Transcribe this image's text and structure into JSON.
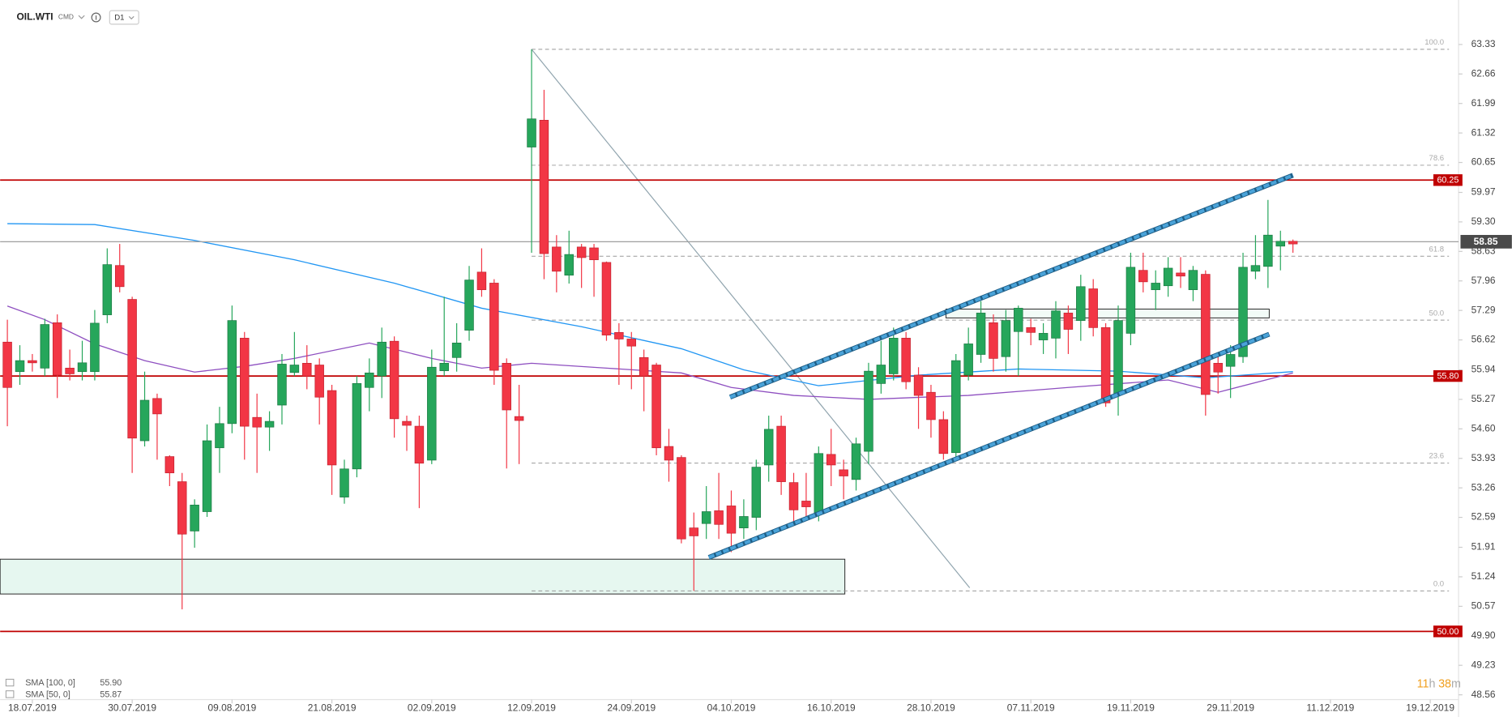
{
  "header": {
    "symbol": "OIL.WTI",
    "market": "CMD",
    "interval": "D1"
  },
  "timer": [
    "11",
    "h",
    "38",
    "m"
  ],
  "chart_data": {
    "type": "candlestick",
    "x": [
      0,
      1,
      2,
      3,
      4,
      5,
      6,
      7,
      8,
      9,
      10,
      11,
      12,
      13,
      14,
      15,
      16,
      17,
      18,
      19,
      20,
      21,
      22,
      23,
      24,
      25,
      26,
      27,
      28,
      29,
      30,
      31,
      32,
      33,
      34,
      35,
      36,
      37,
      38,
      39,
      40,
      41,
      42,
      43,
      44,
      45,
      46,
      47,
      48,
      49,
      50,
      51,
      52,
      53,
      54,
      55,
      56,
      57,
      58,
      59,
      60,
      61,
      62,
      63,
      64,
      65,
      66,
      67,
      68,
      69,
      70,
      71,
      72,
      73,
      74,
      75,
      76,
      77,
      78,
      79,
      80,
      81,
      82,
      83,
      84,
      85,
      86,
      87,
      88,
      89,
      90,
      91,
      92,
      93,
      94,
      95,
      96,
      97,
      98,
      99,
      100,
      101,
      102,
      103
    ],
    "open": [
      56.57,
      55.9,
      56.15,
      55.98,
      57.01,
      55.98,
      55.9,
      55.9,
      57.19,
      58.31,
      57.54,
      54.33,
      55.29,
      53.97,
      53.4,
      52.28,
      52.72,
      54.17,
      54.72,
      56.66,
      54.86,
      54.64,
      55.14,
      55.88,
      56.09,
      56.05,
      55.47,
      53.05,
      53.69,
      55.54,
      55.8,
      56.59,
      54.77,
      54.66,
      53.89,
      55.92,
      56.22,
      56.84,
      58.16,
      57.91,
      56.09,
      54.88,
      61.0,
      61.61,
      58.73,
      58.09,
      58.73,
      58.71,
      58.38,
      56.79,
      56.64,
      56.22,
      56.05,
      54.2,
      53.95,
      52.35,
      52.45,
      52.74,
      52.85,
      52.35,
      52.59,
      53.78,
      54.66,
      53.38,
      52.96,
      52.7,
      54.02,
      53.67,
      53.45,
      54.09,
      55.63,
      55.85,
      56.66,
      55.82,
      55.43,
      54.81,
      54.06,
      55.82,
      56.29,
      57.01,
      56.24,
      56.81,
      56.9,
      56.62,
      56.66,
      57.23,
      57.06,
      57.78,
      56.9,
      55.38,
      56.77,
      58.2,
      57.76,
      57.85,
      58.14,
      57.76,
      58.11,
      56.09,
      56.02,
      56.24,
      58.18,
      58.29,
      58.75,
      58.86
    ],
    "high": [
      57.08,
      56.5,
      56.3,
      57.1,
      57.2,
      56.4,
      56.6,
      57.3,
      58.7,
      58.8,
      57.6,
      55.9,
      55.4,
      54.0,
      53.6,
      53.0,
      54.7,
      55.1,
      57.4,
      56.8,
      55.4,
      55.0,
      56.3,
      56.8,
      56.5,
      56.2,
      55.6,
      53.9,
      55.8,
      56.2,
      56.9,
      56.7,
      54.9,
      54.9,
      56.4,
      57.6,
      57.0,
      58.3,
      58.7,
      58.0,
      56.2,
      55.6,
      63.22,
      62.3,
      59.0,
      59.1,
      58.8,
      58.8,
      58.4,
      57.0,
      56.8,
      56.4,
      56.1,
      54.6,
      54.0,
      52.7,
      53.3,
      53.6,
      53.2,
      53.0,
      53.9,
      54.9,
      54.9,
      53.6,
      53.6,
      54.2,
      54.6,
      53.9,
      54.4,
      56.1,
      56.6,
      56.9,
      56.8,
      56.0,
      55.6,
      55.0,
      56.3,
      56.9,
      57.5,
      57.2,
      57.3,
      57.4,
      57.1,
      57.0,
      57.5,
      57.4,
      58.1,
      58.0,
      57.0,
      57.4,
      58.6,
      58.6,
      58.2,
      58.5,
      58.5,
      58.3,
      58.2,
      56.3,
      56.5,
      58.6,
      59.0,
      59.8,
      59.1,
      58.9
    ],
    "low": [
      54.66,
      55.6,
      55.9,
      55.8,
      55.3,
      55.7,
      55.7,
      55.7,
      57.0,
      57.7,
      53.6,
      54.2,
      53.9,
      53.3,
      50.5,
      51.9,
      52.6,
      53.6,
      54.5,
      53.9,
      53.6,
      54.1,
      54.7,
      55.8,
      55.5,
      54.7,
      53.1,
      52.9,
      53.5,
      55.0,
      55.3,
      54.4,
      54.1,
      52.8,
      53.8,
      55.8,
      55.9,
      56.6,
      57.6,
      55.6,
      53.7,
      53.8,
      58.6,
      58.0,
      57.7,
      57.9,
      57.8,
      57.6,
      56.6,
      55.6,
      55.5,
      55.0,
      54.0,
      53.4,
      52.0,
      50.92,
      52.1,
      52.1,
      51.8,
      52.1,
      52.3,
      53.4,
      53.1,
      52.4,
      52.6,
      52.5,
      53.3,
      53.0,
      53.2,
      53.8,
      55.4,
      55.7,
      55.5,
      54.6,
      54.4,
      53.9,
      53.9,
      55.7,
      56.1,
      55.9,
      55.9,
      55.8,
      56.5,
      56.3,
      56.2,
      56.3,
      56.6,
      56.7,
      55.1,
      54.9,
      56.5,
      57.7,
      57.3,
      57.6,
      57.8,
      57.5,
      54.9,
      55.4,
      55.3,
      56.1,
      58.0,
      57.8,
      58.2,
      58.6
    ],
    "close": [
      55.54,
      56.15,
      56.1,
      56.97,
      55.82,
      55.85,
      56.1,
      57.0,
      58.33,
      57.83,
      54.39,
      55.25,
      54.94,
      53.6,
      52.21,
      52.87,
      54.33,
      54.72,
      57.06,
      54.66,
      54.64,
      54.77,
      56.07,
      56.05,
      55.8,
      55.32,
      53.78,
      53.69,
      55.63,
      55.87,
      56.57,
      54.83,
      54.68,
      53.82,
      56.0,
      56.09,
      56.55,
      57.98,
      57.76,
      55.93,
      55.03,
      54.79,
      61.64,
      58.58,
      58.18,
      58.56,
      58.49,
      58.44,
      56.73,
      56.64,
      56.48,
      55.8,
      54.17,
      53.89,
      52.1,
      52.17,
      52.72,
      52.43,
      52.23,
      52.61,
      53.73,
      54.59,
      53.4,
      52.76,
      52.83,
      54.04,
      53.78,
      53.53,
      54.26,
      55.91,
      56.05,
      56.66,
      55.67,
      55.36,
      54.81,
      54.04,
      56.15,
      56.53,
      57.23,
      56.2,
      57.06,
      57.34,
      56.79,
      56.77,
      57.28,
      56.86,
      57.83,
      56.9,
      55.19,
      57.06,
      58.27,
      57.94,
      57.91,
      58.25,
      58.07,
      58.2,
      55.38,
      55.89,
      56.29,
      58.27,
      58.31,
      59.0,
      58.86,
      58.8
    ],
    "up_color": "#26a65b",
    "down_color": "#f23645",
    "xlim": [
      -0.58,
      116.27
    ],
    "ylim": [
      48.32,
      64.12
    ],
    "xticks": [
      {
        "value": 2,
        "label": "18.07.2019"
      },
      {
        "value": 10,
        "label": "30.07.2019"
      },
      {
        "value": 18,
        "label": "09.08.2019"
      },
      {
        "value": 26,
        "label": "21.08.2019"
      },
      {
        "value": 34,
        "label": "02.09.2019"
      },
      {
        "value": 42,
        "label": "12.09.2019"
      },
      {
        "value": 50,
        "label": "24.09.2019"
      },
      {
        "value": 58,
        "label": "04.10.2019"
      },
      {
        "value": 66,
        "label": "16.10.2019"
      },
      {
        "value": 74,
        "label": "28.10.2019"
      },
      {
        "value": 82,
        "label": "07.11.2019"
      },
      {
        "value": 90,
        "label": "19.11.2019"
      },
      {
        "value": 98,
        "label": "29.11.2019"
      },
      {
        "value": 106,
        "label": "11.12.2019"
      },
      {
        "value": 114,
        "label": "19.12.2019"
      }
    ],
    "yticks": [
      63.33,
      62.66,
      61.99,
      61.32,
      60.65,
      59.97,
      {
        "value": 59.3,
        "label": "59.30"
      },
      58.63,
      57.96,
      57.29,
      56.62,
      55.94,
      55.27,
      {
        "value": 54.6,
        "label": "54.60"
      },
      53.93,
      53.26,
      52.59,
      51.91,
      51.24,
      50.57,
      {
        "value": 49.9,
        "label": "49.90"
      },
      49.23,
      48.56
    ],
    "current_price": 58.85,
    "levels": [
      60.25,
      {
        "value": 55.8,
        "label": "55.80"
      },
      {
        "value": 50,
        "label": "50.00"
      }
    ],
    "level_color": "#c00000",
    "fib": {
      "high": 63.22,
      "low": 50.92,
      "x": [
        42,
        115.5
      ],
      "levels": [
        {
          "value": 100,
          "label": "100.0"
        },
        78.6,
        61.8,
        {
          "value": 50,
          "label": "50.0"
        },
        23.6,
        {
          "value": 0,
          "label": "0.0"
        }
      ]
    },
    "trendline": {
      "x": [
        42,
        77.1
      ],
      "y": [
        63.22,
        50.99
      ]
    },
    "channel": [
      {
        "x": [
          57.9,
          103.0
        ],
        "y": [
          55.32,
          60.36
        ]
      },
      {
        "x": [
          56.2,
          101.1
        ],
        "y": [
          51.68,
          56.75
        ]
      }
    ],
    "zones": [
      {
        "x": [
          -0.58,
          67.1
        ],
        "y": [
          51.64,
          50.85
        ],
        "fill": "#e6f7f0"
      },
      {
        "x": [
          75.2,
          101.1
        ],
        "y": [
          57.32,
          57.12
        ],
        "fill": "#f2fbf7"
      }
    ],
    "series": [
      {
        "name": "SMA [100, 0]",
        "color": "#2196f3",
        "x": [
          0,
          7,
          15,
          23,
          31,
          38,
          46,
          54,
          59,
          65,
          73,
          81,
          89,
          96,
          103
        ],
        "values": [
          59.26,
          59.24,
          58.88,
          58.44,
          57.91,
          57.34,
          56.92,
          56.42,
          55.94,
          55.58,
          55.82,
          55.96,
          55.91,
          55.76,
          55.9
        ],
        "last": {
          "value": 55.9,
          "label": "55.90"
        }
      },
      {
        "name": "SMA [50, 0]",
        "color": "#8e4fc0",
        "x": [
          0,
          3,
          7,
          11,
          15,
          19,
          23,
          29,
          34,
          38,
          42,
          48,
          54,
          58,
          63,
          69,
          77,
          85,
          93,
          97,
          103
        ],
        "values": [
          57.39,
          57.08,
          56.53,
          56.15,
          55.89,
          56.02,
          56.2,
          56.55,
          56.2,
          55.98,
          56.09,
          55.98,
          55.87,
          55.54,
          55.36,
          55.27,
          55.36,
          55.54,
          55.71,
          55.43,
          55.87
        ],
        "last": 55.87
      }
    ]
  }
}
